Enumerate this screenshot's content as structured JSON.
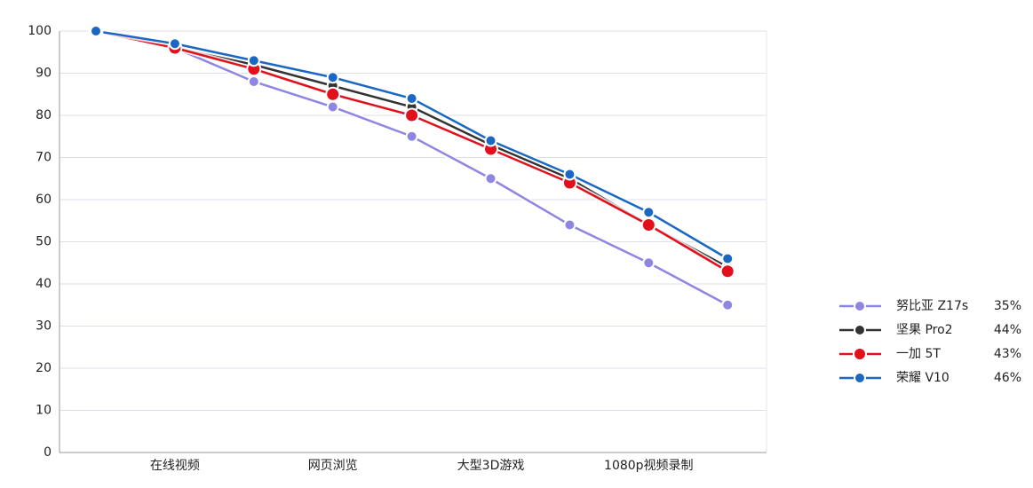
{
  "chart_data": {
    "type": "line",
    "categories": [
      null,
      "在线视频",
      null,
      "网页浏览",
      null,
      "大型3D游戏",
      null,
      "1080p视频录制",
      null
    ],
    "series": [
      {
        "name": "努比亚 Z17s",
        "color": "#8e86e2",
        "values": [
          100,
          96,
          88,
          82,
          75,
          65,
          54,
          45,
          35
        ],
        "summary": {
          "value": 35,
          "label": "35%"
        }
      },
      {
        "name": "坚果 Pro2",
        "color": "#333333",
        "values": [
          100,
          96,
          92,
          87,
          82,
          73,
          65,
          54,
          44
        ],
        "summary": {
          "value": 44,
          "label": "44%"
        }
      },
      {
        "name": "一加 5T",
        "color": "#e3101c",
        "values": [
          100,
          96,
          91,
          85,
          80,
          72,
          64,
          54,
          43
        ],
        "summary": {
          "value": 43,
          "label": "43%"
        }
      },
      {
        "name": "荣耀 V10",
        "color": "#1a67c4",
        "values": [
          100,
          97,
          93,
          89,
          84,
          74,
          66,
          57,
          46
        ],
        "summary": {
          "value": 46,
          "label": "46%"
        }
      }
    ],
    "ylim": [
      0,
      100
    ],
    "yticks": [
      0,
      10,
      20,
      30,
      40,
      50,
      60,
      70,
      80,
      90,
      100
    ],
    "grid": true,
    "legend": "right"
  }
}
